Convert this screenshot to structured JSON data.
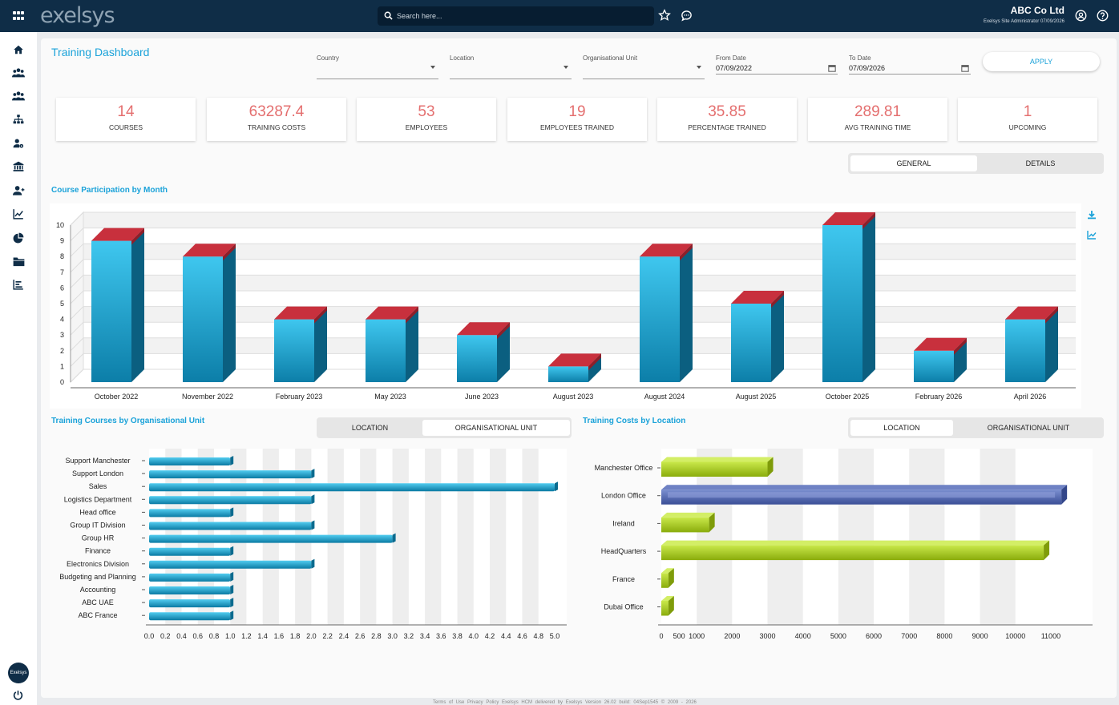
{
  "topbar": {
    "logo": "exelsys",
    "search_placeholder": "Search here...",
    "company": "ABC Co Ltd",
    "user_line": "Exelsys Site Administrator 07/09/2026",
    "avatar_text": "Exelsys"
  },
  "sidebar": {
    "icons": [
      "home-icon",
      "people-group-icon",
      "people-group-2-icon",
      "org-chart-icon",
      "person-settings-icon",
      "bank-icon",
      "person-add-icon",
      "line-chart-icon",
      "pie-chart-icon",
      "folder-icon",
      "bar-list-icon"
    ]
  },
  "page": {
    "title": "Training Dashboard"
  },
  "filters": {
    "country": {
      "label": "Country",
      "value": ""
    },
    "location": {
      "label": "Location",
      "value": ""
    },
    "org_unit": {
      "label": "Organisational Unit",
      "value": ""
    },
    "from_date": {
      "label": "From Date",
      "value": "07/09/2022"
    },
    "to_date": {
      "label": "To Date",
      "value": "07/09/2026"
    },
    "apply_label": "APPLY"
  },
  "kpis": [
    {
      "value": "14",
      "label": "COURSES"
    },
    {
      "value": "63287.4",
      "label": "TRAINING COSTS"
    },
    {
      "value": "53",
      "label": "EMPLOYEES"
    },
    {
      "value": "19",
      "label": "EMPLOYEES TRAINED"
    },
    {
      "value": "35.85",
      "label": "PERCENTAGE TRAINED"
    },
    {
      "value": "289.81",
      "label": "AVG TRAINING TIME"
    },
    {
      "value": "1",
      "label": "UPCOMING"
    }
  ],
  "view_toggle": {
    "general": "GENERAL",
    "details": "DETAILS"
  },
  "participation": {
    "title": "Course Participation by Month"
  },
  "orgunit_section": {
    "title": "Training Courses by Organisational Unit",
    "toggle_location": "LOCATION",
    "toggle_orgunit": "ORGANISATIONAL UNIT"
  },
  "costs_section": {
    "title": "Training Costs by Location",
    "toggle_location": "LOCATION",
    "toggle_orgunit": "ORGANISATIONAL UNIT"
  },
  "footer": {
    "text": "Terms of Use    Privacy Policy    Exelsys HCM delivered by Exelsys    Version 26.02 build: 04Sep1545 © 2009 - 2026"
  },
  "colors": {
    "bar_blue": "#1fa8d6",
    "bar_cap": "#c8303d",
    "bar_green": "#a2c41a",
    "bar_navy": "#4a5fa6",
    "accent": "#1aa2d9",
    "kpi_value": "#e46f6f"
  },
  "chart_data": [
    {
      "type": "bar",
      "title": "Course Participation by Month",
      "categories": [
        "October 2022",
        "November 2022",
        "February 2023",
        "May 2023",
        "June 2023",
        "August 2023",
        "August 2024",
        "August 2025",
        "October 2025",
        "February 2026",
        "April 2026"
      ],
      "values": [
        9,
        8,
        4,
        4,
        3,
        1,
        8,
        5,
        10,
        2,
        4
      ],
      "ylim": [
        0,
        10
      ],
      "yticks": [
        0,
        1,
        2,
        3,
        4,
        5,
        6,
        7,
        8,
        9,
        10
      ],
      "style": "3d",
      "grid": true
    },
    {
      "type": "bar",
      "orientation": "horizontal",
      "title": "Training Courses by Organisational Unit",
      "categories": [
        "Support Manchester",
        "Support London",
        "Sales",
        "Logistics Department",
        "Head office",
        "Group IT Division",
        "Group HR",
        "Finance",
        "Electronics Division",
        "Budgeting and Planning",
        "Accounting",
        "ABC UAE",
        "ABC France"
      ],
      "values": [
        1,
        2,
        5,
        2,
        1,
        2,
        3,
        1,
        2,
        1,
        1,
        1,
        1
      ],
      "xlim": [
        0,
        5
      ],
      "xticks": [
        "0.0",
        "0.2",
        "0.4",
        "0.6",
        "0.8",
        "1.0",
        "1.2",
        "1.4",
        "1.6",
        "1.8",
        "2.0",
        "2.2",
        "2.4",
        "2.6",
        "2.8",
        "3.0",
        "3.2",
        "3.4",
        "3.6",
        "3.8",
        "4.0",
        "4.2",
        "4.4",
        "4.6",
        "4.8",
        "5.0"
      ]
    },
    {
      "type": "bar",
      "orientation": "horizontal",
      "title": "Training Costs by Location",
      "categories": [
        "Manchester Office",
        "London Office",
        "Ireland",
        "HeadQuarters",
        "France",
        "Dubai Office"
      ],
      "values": [
        3000,
        11300,
        1350,
        10800,
        200,
        200
      ],
      "highlight": "London Office",
      "xlim": [
        0,
        11500
      ],
      "xticks": [
        "0",
        "500",
        "1000",
        "2000",
        "3000",
        "4000",
        "5000",
        "6000",
        "7000",
        "8000",
        "9000",
        "10000",
        "11000"
      ]
    }
  ]
}
